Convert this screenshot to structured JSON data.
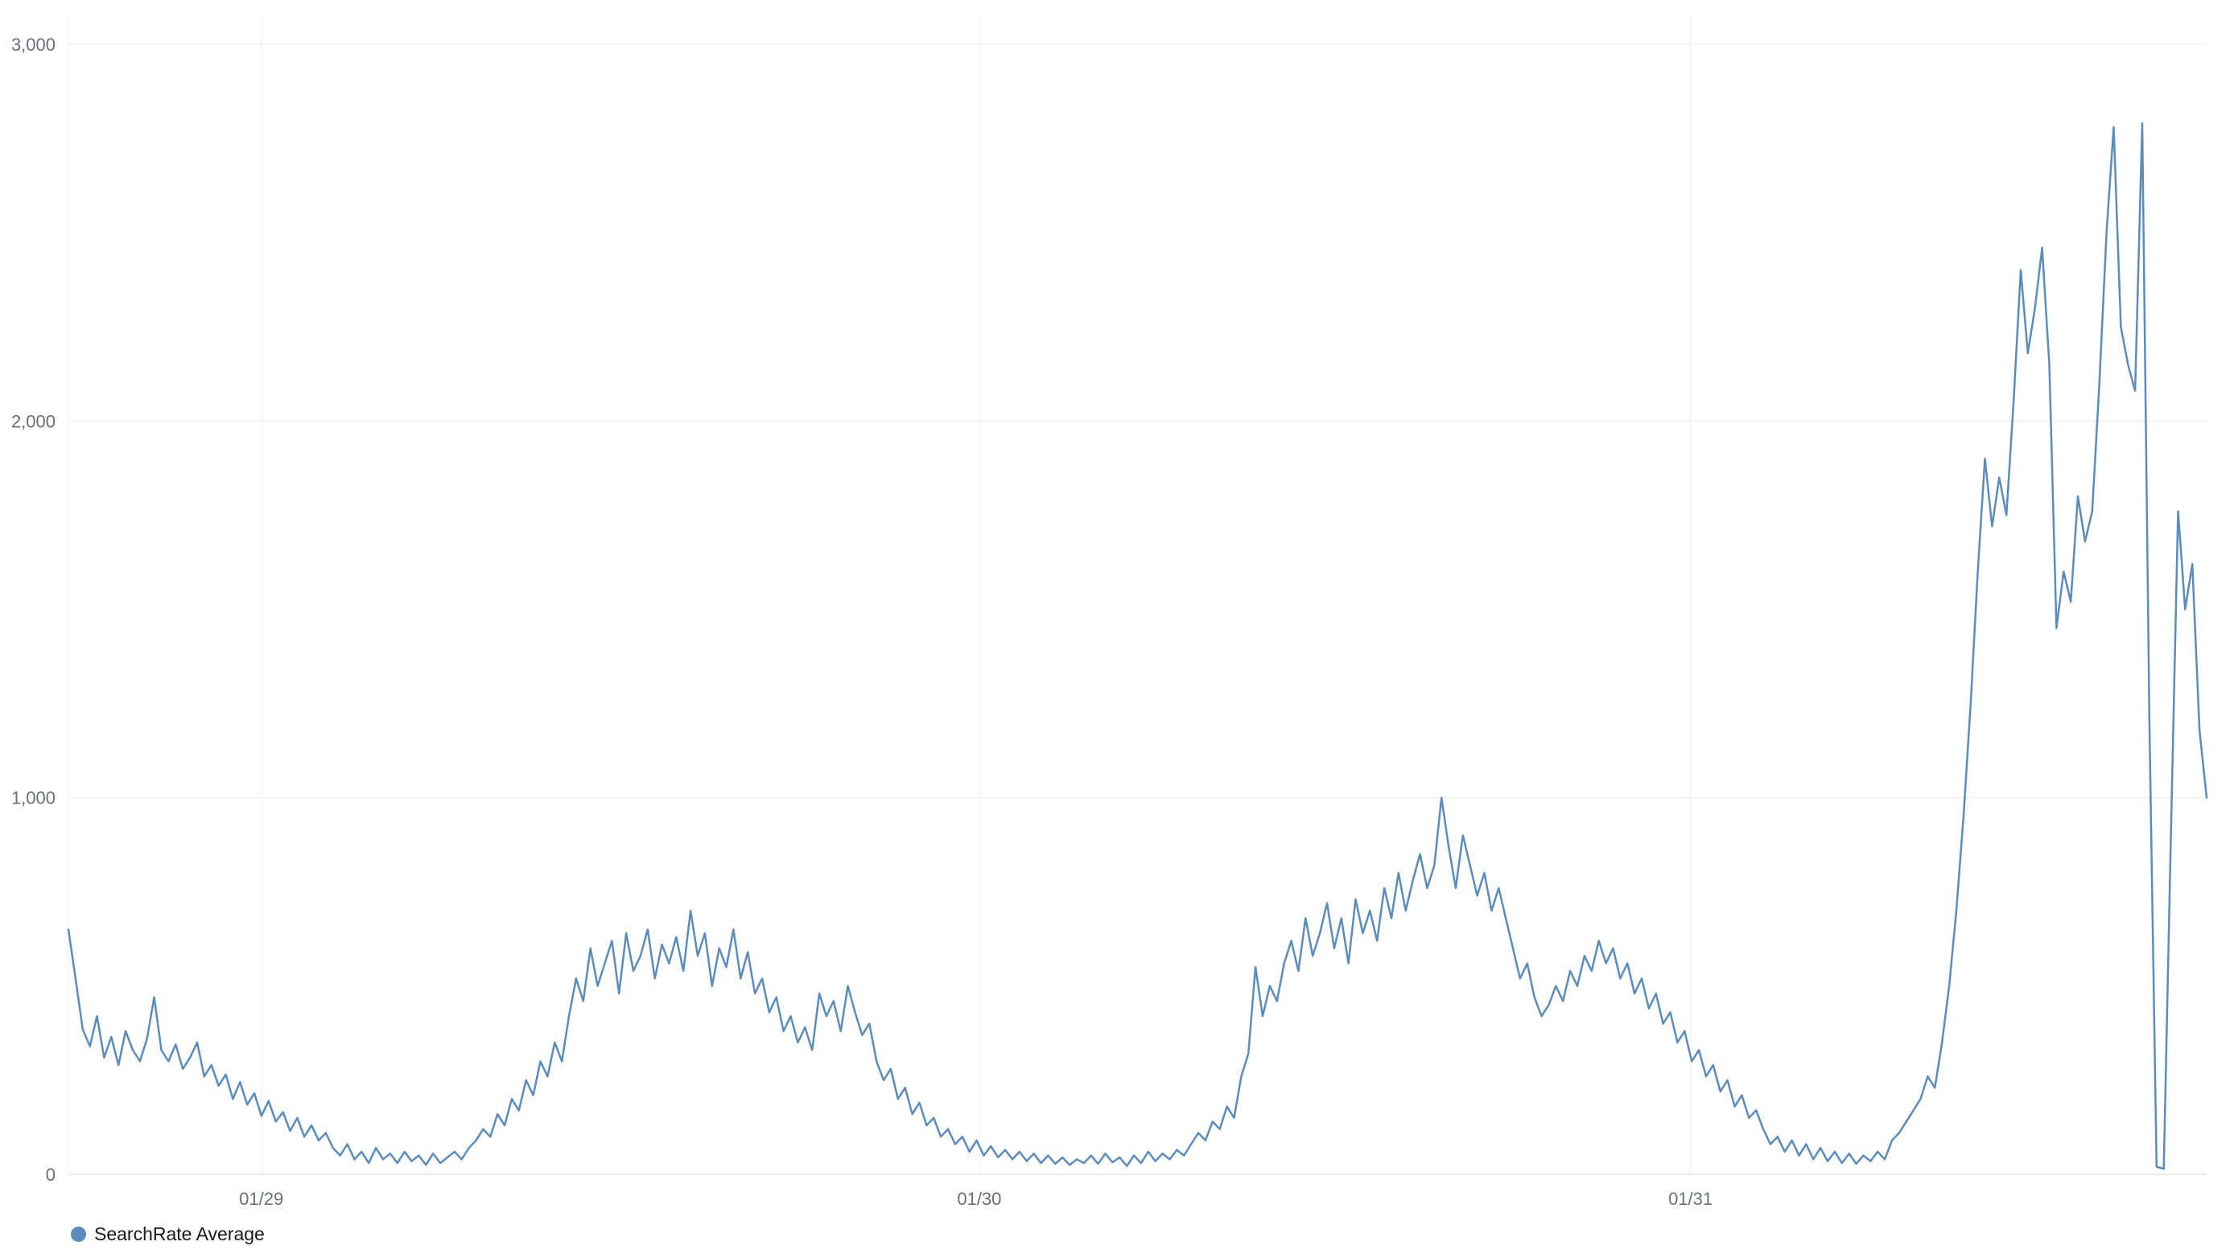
{
  "legend": {
    "items": [
      {
        "label": "SearchRate Average",
        "color": "#5b8cbe"
      }
    ]
  },
  "colors": {
    "line": "#5b8cbe",
    "grid": "#ececec",
    "grid_v": "#f1f1f1",
    "axis": "#d8d8d8",
    "tick_text": "#687078",
    "legend_text": "#16191f",
    "background": "#ffffff"
  },
  "chart_data": {
    "type": "line",
    "title": "",
    "xlabel": "",
    "ylabel": "",
    "ylim": [
      0,
      3000
    ],
    "grid": true,
    "legend_position": "bottom-left",
    "y_ticks": [
      0,
      1000,
      2000,
      3000
    ],
    "y_tick_labels": [
      "0",
      "1,000",
      "2,000",
      "3,000"
    ],
    "x_ticks": [
      {
        "label": "01/29",
        "pos": 0.0902
      },
      {
        "label": "01/30",
        "pos": 0.426
      },
      {
        "label": "01/31",
        "pos": 0.7586
      }
    ],
    "series": [
      {
        "name": "SearchRate Average",
        "color": "#5b8cbe",
        "values": [
          650,
          520,
          385,
          340,
          420,
          310,
          365,
          290,
          380,
          330,
          300,
          360,
          470,
          330,
          300,
          345,
          280,
          310,
          350,
          260,
          290,
          235,
          265,
          200,
          245,
          185,
          215,
          155,
          195,
          140,
          165,
          115,
          150,
          100,
          130,
          90,
          110,
          70,
          50,
          80,
          40,
          60,
          30,
          70,
          40,
          55,
          30,
          60,
          35,
          50,
          25,
          55,
          30,
          45,
          60,
          40,
          70,
          90,
          120,
          100,
          160,
          130,
          200,
          170,
          250,
          210,
          300,
          260,
          350,
          300,
          420,
          520,
          460,
          600,
          500,
          560,
          620,
          480,
          640,
          540,
          580,
          650,
          520,
          610,
          560,
          630,
          540,
          700,
          580,
          640,
          500,
          600,
          550,
          650,
          520,
          590,
          480,
          520,
          430,
          470,
          380,
          420,
          350,
          390,
          330,
          480,
          420,
          460,
          380,
          500,
          430,
          370,
          400,
          300,
          250,
          280,
          200,
          230,
          160,
          190,
          130,
          150,
          100,
          120,
          80,
          100,
          60,
          90,
          50,
          75,
          45,
          65,
          40,
          60,
          35,
          55,
          30,
          50,
          28,
          45,
          25,
          40,
          30,
          50,
          28,
          55,
          32,
          45,
          22,
          50,
          30,
          60,
          35,
          55,
          40,
          65,
          50,
          80,
          110,
          90,
          140,
          120,
          180,
          150,
          260,
          320,
          550,
          420,
          500,
          460,
          560,
          620,
          540,
          680,
          580,
          640,
          720,
          600,
          680,
          560,
          730,
          640,
          700,
          620,
          760,
          680,
          800,
          700,
          780,
          850,
          760,
          820,
          1000,
          870,
          760,
          900,
          820,
          740,
          800,
          700,
          760,
          680,
          600,
          520,
          560,
          470,
          420,
          450,
          500,
          460,
          540,
          500,
          580,
          540,
          620,
          560,
          600,
          520,
          560,
          480,
          520,
          440,
          480,
          400,
          430,
          350,
          380,
          300,
          330,
          260,
          290,
          220,
          250,
          180,
          210,
          150,
          170,
          120,
          80,
          100,
          60,
          90,
          50,
          80,
          40,
          70,
          35,
          60,
          30,
          55,
          28,
          50,
          35,
          60,
          40,
          90,
          110,
          140,
          170,
          200,
          260,
          230,
          350,
          500,
          700,
          950,
          1250,
          1600,
          1900,
          1720,
          1850,
          1750,
          2050,
          2400,
          2180,
          2300,
          2460,
          2150,
          1450,
          1600,
          1520,
          1800,
          1680,
          1760,
          2100,
          2500,
          2780,
          2250,
          2150,
          2080,
          2790,
          1200,
          20,
          15,
          900,
          1760,
          1500,
          1620,
          1180,
          1000
        ]
      }
    ]
  }
}
